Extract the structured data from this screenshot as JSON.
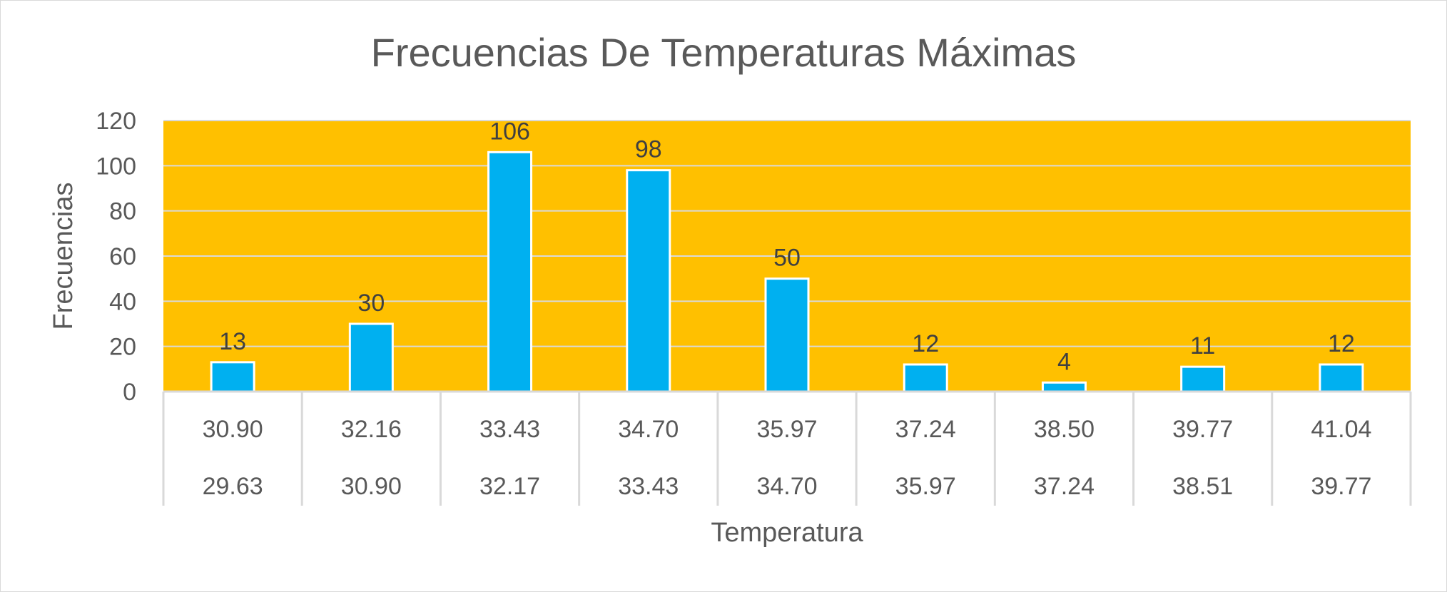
{
  "chart_data": {
    "type": "bar",
    "title": "Frecuencias De Temperaturas Máximas",
    "xlabel": "Temperatura",
    "ylabel": "Frecuencias",
    "ylim": [
      0,
      120
    ],
    "yticks": [
      "0",
      "20",
      "40",
      "60",
      "80",
      "100",
      "120"
    ],
    "categories": [
      {
        "upper": "30.90",
        "lower": "29.63"
      },
      {
        "upper": "32.16",
        "lower": "30.90"
      },
      {
        "upper": "33.43",
        "lower": "32.17"
      },
      {
        "upper": "34.70",
        "lower": "33.43"
      },
      {
        "upper": "35.97",
        "lower": "34.70"
      },
      {
        "upper": "37.24",
        "lower": "35.97"
      },
      {
        "upper": "38.50",
        "lower": "37.24"
      },
      {
        "upper": "39.77",
        "lower": "38.51"
      },
      {
        "upper": "41.04",
        "lower": "39.77"
      }
    ],
    "values": [
      13,
      30,
      106,
      98,
      50,
      12,
      4,
      11,
      12
    ],
    "data_labels": [
      "13",
      "30",
      "106",
      "98",
      "50",
      "12",
      "4",
      "11",
      "12"
    ],
    "grid": true,
    "legend": "none",
    "colors": {
      "plot_background": "#FFC000",
      "bar_fill": "#00B0F0",
      "bar_border": "#FFFFFF",
      "gridline": "#D9D9D9",
      "text": "#595959"
    }
  }
}
